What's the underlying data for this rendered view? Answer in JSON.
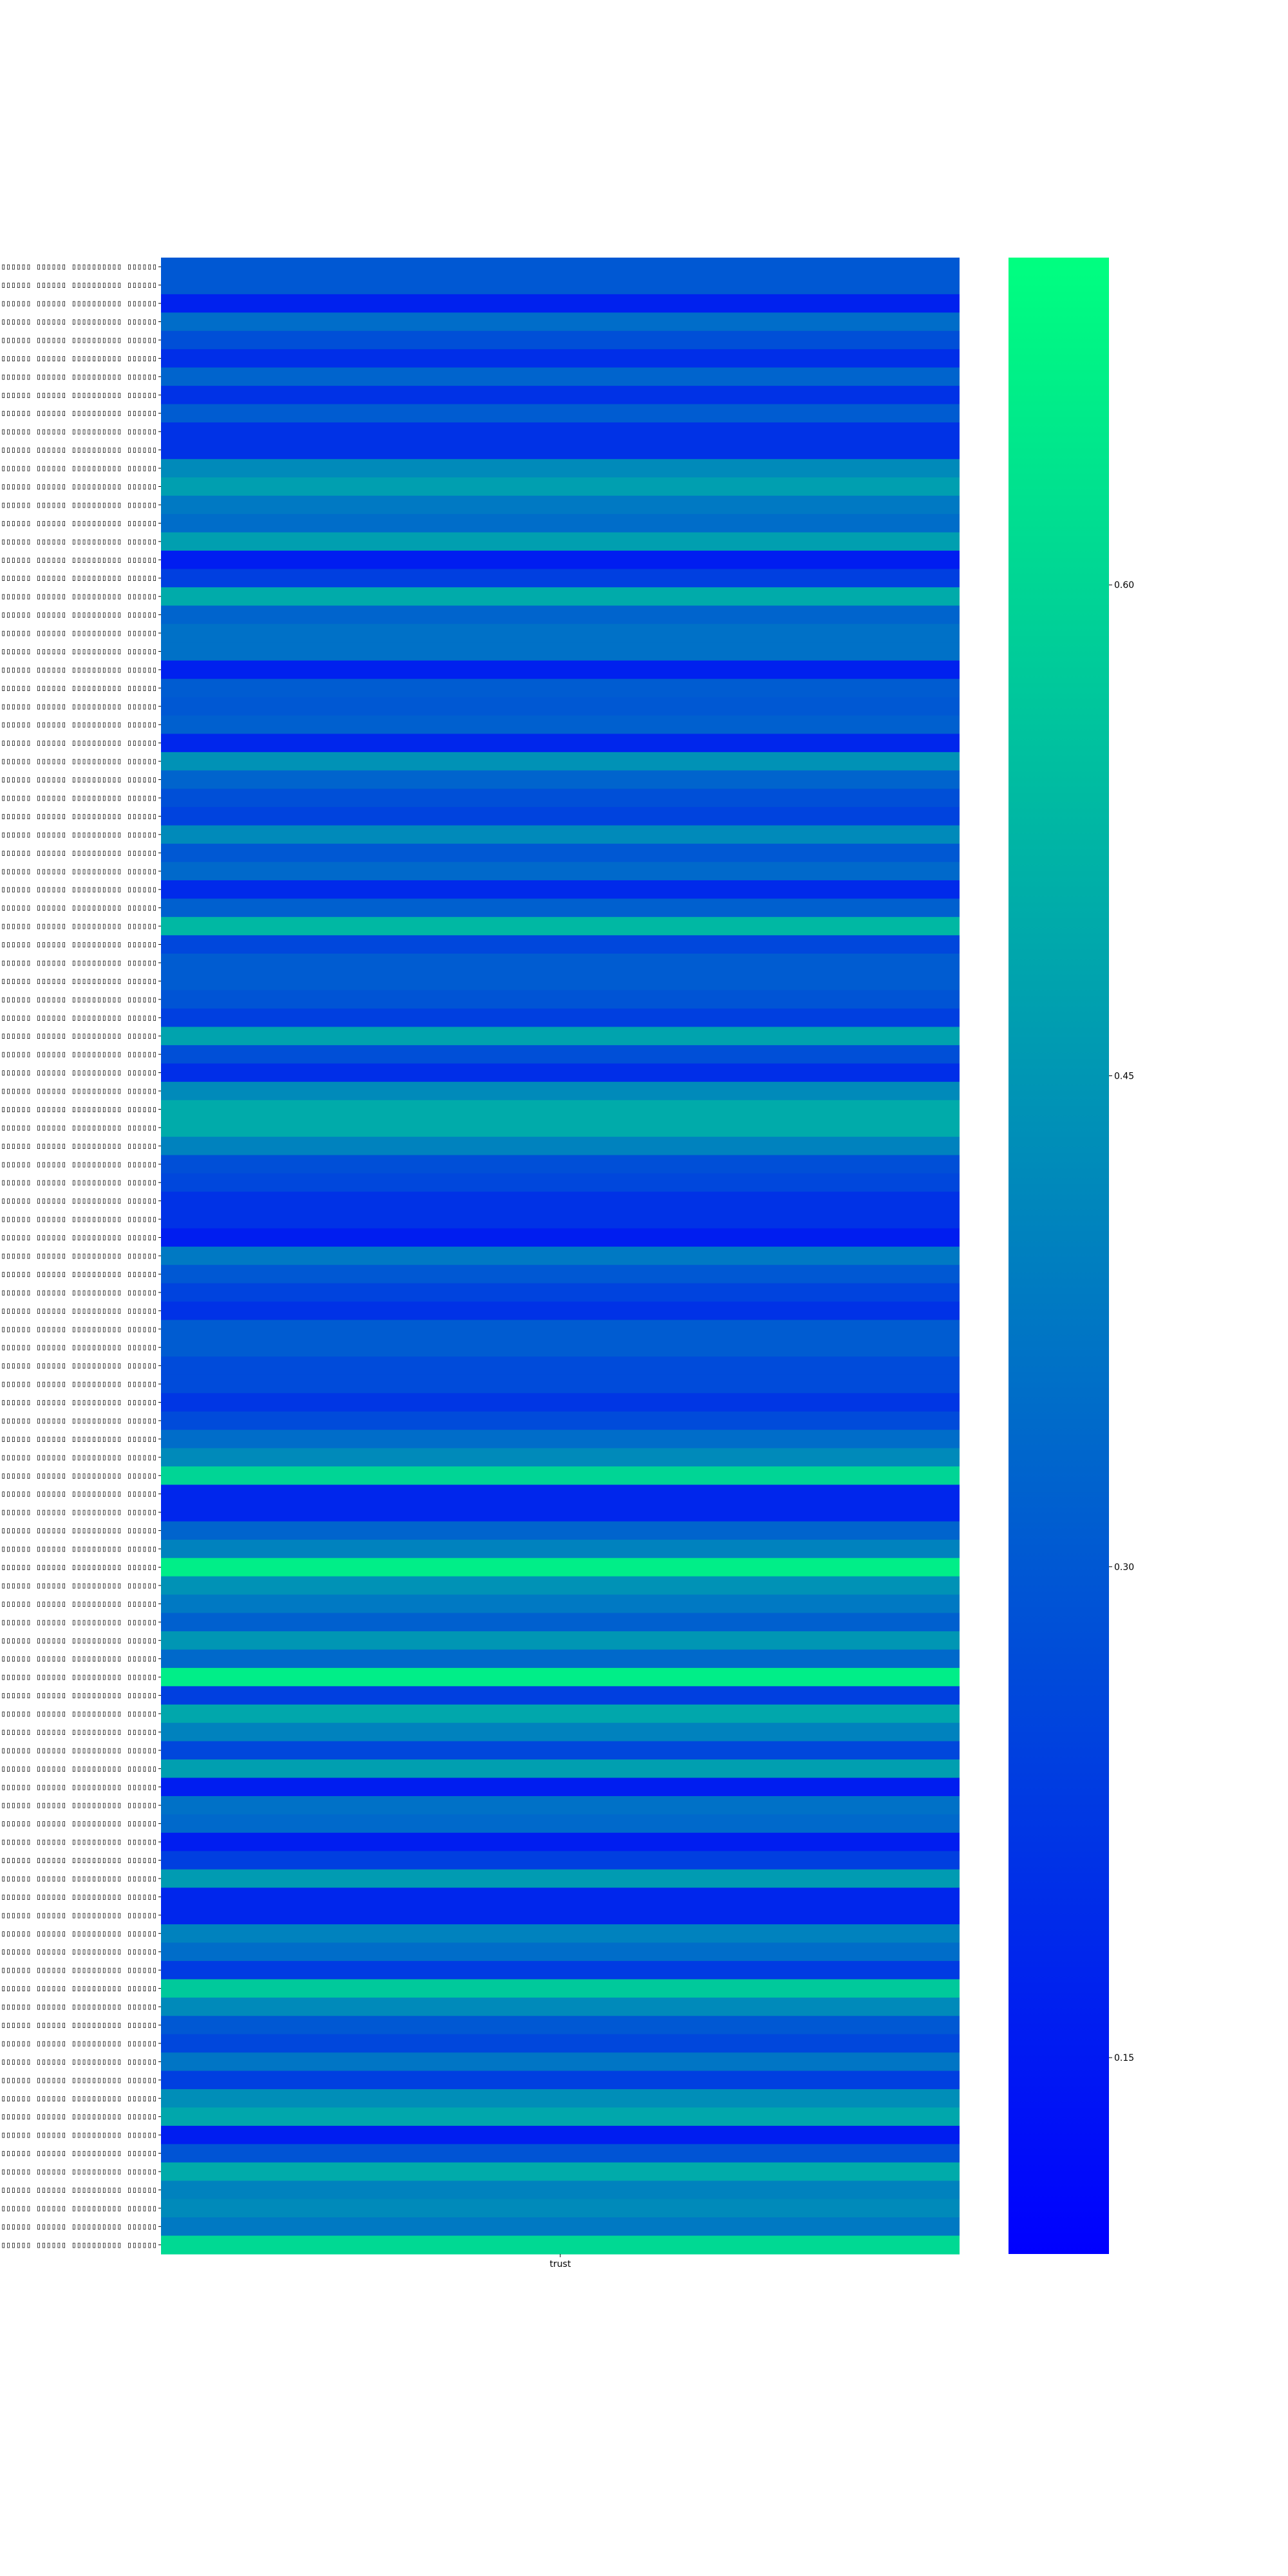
{
  "chart_data": {
    "type": "heatmap",
    "x_categories": [
      "trust"
    ],
    "row_label_text": "▯▯▯▯▯▯▯▯▯▯▯▯▯▯▯▯▯ ▯▯▯▯▯▯ ▯▯▯▯▯▯▯▯▯▯ ▯▯▯▯▯▯",
    "values": [
      0.3,
      0.3,
      0.17,
      0.35,
      0.28,
      0.2,
      0.33,
      0.21,
      0.31,
      0.21,
      0.21,
      0.42,
      0.47,
      0.38,
      0.35,
      0.47,
      0.16,
      0.24,
      0.5,
      0.33,
      0.36,
      0.36,
      0.17,
      0.31,
      0.3,
      0.32,
      0.18,
      0.44,
      0.33,
      0.28,
      0.25,
      0.42,
      0.3,
      0.34,
      0.19,
      0.32,
      0.53,
      0.26,
      0.31,
      0.31,
      0.29,
      0.24,
      0.48,
      0.28,
      0.2,
      0.42,
      0.5,
      0.5,
      0.4,
      0.28,
      0.26,
      0.21,
      0.21,
      0.16,
      0.38,
      0.3,
      0.25,
      0.21,
      0.31,
      0.31,
      0.27,
      0.27,
      0.22,
      0.27,
      0.35,
      0.42,
      0.6,
      0.18,
      0.18,
      0.33,
      0.4,
      0.66,
      0.44,
      0.38,
      0.32,
      0.45,
      0.34,
      0.66,
      0.24,
      0.49,
      0.4,
      0.26,
      0.47,
      0.16,
      0.36,
      0.34,
      0.16,
      0.24,
      0.46,
      0.18,
      0.18,
      0.4,
      0.35,
      0.23,
      0.57,
      0.42,
      0.3,
      0.26,
      0.37,
      0.24,
      0.43,
      0.49,
      0.16,
      0.29,
      0.5,
      0.4,
      0.42,
      0.38,
      0.61
    ],
    "colorbar": {
      "vmin": 0.09,
      "vmax": 0.7,
      "ticks": [
        0.15,
        0.3,
        0.45,
        0.6
      ],
      "tick_labels": [
        "0.15",
        "0.30",
        "0.45",
        "0.60"
      ],
      "colormap": "winter",
      "color_low": "#0000ff",
      "color_high": "#00ff80"
    },
    "xlabel": "",
    "ylabel": "",
    "title": ""
  }
}
